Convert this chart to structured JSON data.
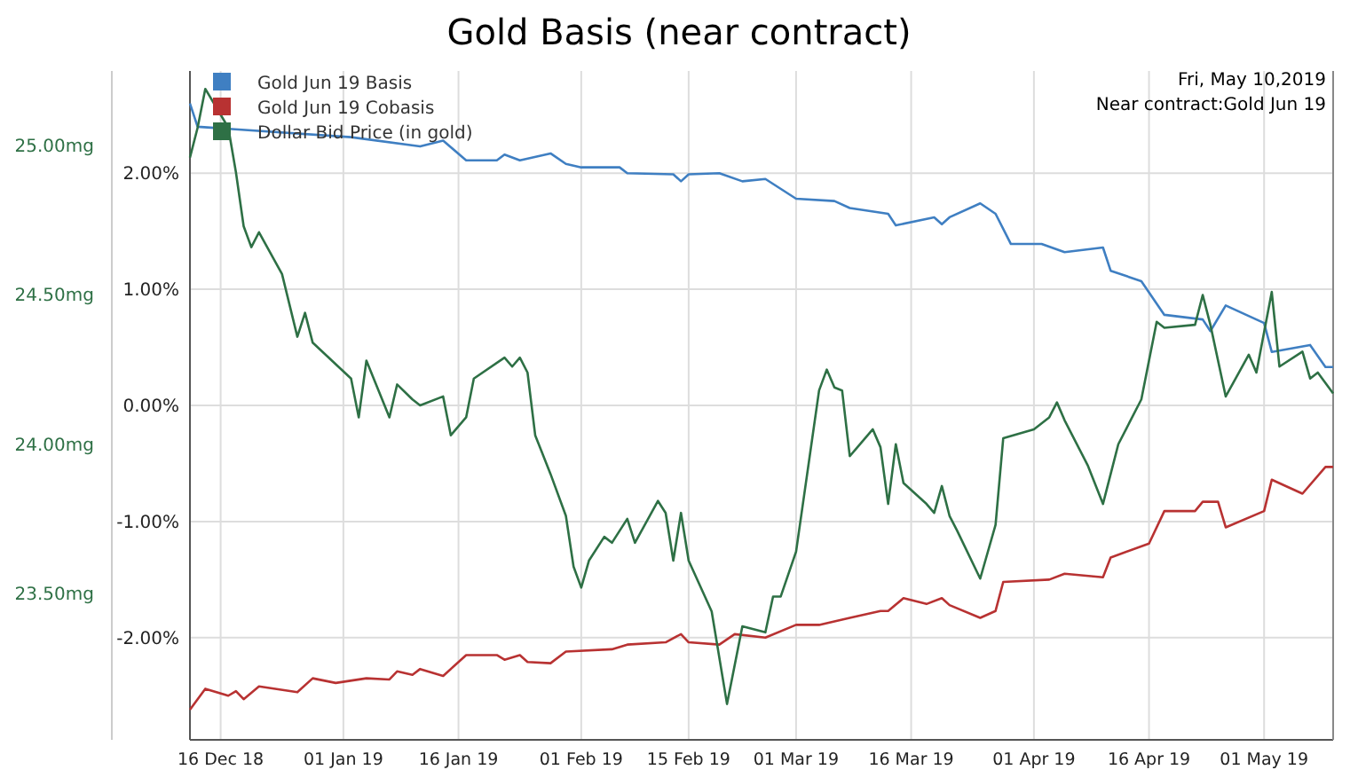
{
  "chart_data": {
    "type": "line",
    "title": "Gold Basis (near contract)",
    "annotations": [
      "Fri, May 10,2019",
      "Near contract:Gold Jun 19"
    ],
    "xlim": [
      "2018-12-12",
      "2019-05-10"
    ],
    "xticks": [
      {
        "value": "2018-12-16",
        "label": "16 Dec 18"
      },
      {
        "value": "2019-01-01",
        "label": "01 Jan 19"
      },
      {
        "value": "2019-01-16",
        "label": "16 Jan 19"
      },
      {
        "value": "2019-02-01",
        "label": "01 Feb 19"
      },
      {
        "value": "2019-02-15",
        "label": "15 Feb 19"
      },
      {
        "value": "2019-03-01",
        "label": "01 Mar 19"
      },
      {
        "value": "2019-03-16",
        "label": "16 Mar 19"
      },
      {
        "value": "2019-04-01",
        "label": "01 Apr 19"
      },
      {
        "value": "2019-04-16",
        "label": "16 Apr 19"
      },
      {
        "value": "2019-05-01",
        "label": "01 May 19"
      }
    ],
    "ylim": [
      -2.88,
      2.88
    ],
    "yticks": [
      {
        "value": -2,
        "label": "-2.00%"
      },
      {
        "value": -1,
        "label": "-1.00%"
      },
      {
        "value": 0,
        "label": "0.00%"
      },
      {
        "value": 1,
        "label": "1.00%"
      },
      {
        "value": 2,
        "label": "2.00%"
      }
    ],
    "y2lim": [
      23.01,
      25.25
    ],
    "y2ticks": [
      {
        "value": 23.5,
        "label": "23.50mg"
      },
      {
        "value": 24,
        "label": "24.00mg"
      },
      {
        "value": 24.5,
        "label": "24.50mg"
      },
      {
        "value": 25,
        "label": "25.00mg"
      }
    ],
    "grid": true,
    "legend": "top left",
    "marker": "none",
    "line_style": "solid",
    "series": [
      {
        "name": "Gold Jun 19 Basis",
        "color": "#3f7fc2",
        "x": [
          "2018-12-12",
          "2018-12-13",
          "2019-01-02",
          "2019-01-11",
          "2019-01-14",
          "2019-01-17",
          "2019-01-21",
          "2019-01-22",
          "2019-01-24",
          "2019-01-28",
          "2019-01-30",
          "2019-02-01",
          "2019-02-06",
          "2019-02-07",
          "2019-02-13",
          "2019-02-14",
          "2019-02-15",
          "2019-02-19",
          "2019-02-22",
          "2019-02-25",
          "2019-03-01",
          "2019-03-06",
          "2019-03-08",
          "2019-03-13",
          "2019-03-14",
          "2019-03-19",
          "2019-03-20",
          "2019-03-21",
          "2019-03-25",
          "2019-03-27",
          "2019-03-29",
          "2019-04-02",
          "2019-04-05",
          "2019-04-10",
          "2019-04-11",
          "2019-04-15",
          "2019-04-18",
          "2019-04-23",
          "2019-04-24",
          "2019-04-26",
          "2019-05-01",
          "2019-05-02",
          "2019-05-07",
          "2019-05-09",
          "2019-05-10"
        ],
        "values": [
          2.6,
          2.4,
          2.31,
          2.23,
          2.28,
          2.11,
          2.11,
          2.16,
          2.11,
          2.17,
          2.08,
          2.05,
          2.05,
          2.0,
          1.99,
          1.93,
          1.99,
          2.0,
          1.93,
          1.95,
          1.78,
          1.76,
          1.7,
          1.65,
          1.55,
          1.62,
          1.56,
          1.62,
          1.74,
          1.65,
          1.39,
          1.39,
          1.32,
          1.36,
          1.16,
          1.07,
          0.78,
          0.74,
          0.64,
          0.86,
          0.71,
          0.46,
          0.52,
          0.33,
          0.33
        ]
      },
      {
        "name": "Gold Jun 19 Cobasis",
        "color": "#b83232",
        "x": [
          "2018-12-12",
          "2018-12-14",
          "2018-12-17",
          "2018-12-18",
          "2018-12-19",
          "2018-12-21",
          "2018-12-26",
          "2018-12-28",
          "2018-12-31",
          "2019-01-04",
          "2019-01-07",
          "2019-01-08",
          "2019-01-10",
          "2019-01-11",
          "2019-01-14",
          "2019-01-17",
          "2019-01-21",
          "2019-01-22",
          "2019-01-24",
          "2019-01-25",
          "2019-01-28",
          "2019-01-30",
          "2019-02-05",
          "2019-02-07",
          "2019-02-12",
          "2019-02-14",
          "2019-02-15",
          "2019-02-19",
          "2019-02-21",
          "2019-02-25",
          "2019-03-01",
          "2019-03-04",
          "2019-03-08",
          "2019-03-12",
          "2019-03-13",
          "2019-03-15",
          "2019-03-18",
          "2019-03-20",
          "2019-03-21",
          "2019-03-25",
          "2019-03-27",
          "2019-03-28",
          "2019-04-03",
          "2019-04-05",
          "2019-04-10",
          "2019-04-11",
          "2019-04-16",
          "2019-04-18",
          "2019-04-22",
          "2019-04-23",
          "2019-04-25",
          "2019-04-26",
          "2019-05-01",
          "2019-05-02",
          "2019-05-06",
          "2019-05-09",
          "2019-05-10"
        ],
        "values": [
          -2.62,
          -2.44,
          -2.5,
          -2.46,
          -2.53,
          -2.42,
          -2.47,
          -2.35,
          -2.39,
          -2.35,
          -2.36,
          -2.29,
          -2.32,
          -2.27,
          -2.33,
          -2.15,
          -2.15,
          -2.19,
          -2.15,
          -2.21,
          -2.22,
          -2.12,
          -2.1,
          -2.06,
          -2.04,
          -1.97,
          -2.04,
          -2.06,
          -1.97,
          -2.0,
          -1.89,
          -1.89,
          -1.83,
          -1.77,
          -1.77,
          -1.66,
          -1.71,
          -1.66,
          -1.72,
          -1.83,
          -1.77,
          -1.52,
          -1.5,
          -1.45,
          -1.48,
          -1.31,
          -1.19,
          -0.91,
          -0.91,
          -0.83,
          -0.83,
          -1.05,
          -0.91,
          -0.64,
          -0.76,
          -0.53,
          -0.53
        ]
      },
      {
        "name": "Dollar Bid Price (in gold)",
        "color": "#2e7045",
        "axis": "y2",
        "x": [
          "2018-12-12",
          "2018-12-13",
          "2018-12-14",
          "2018-12-17",
          "2018-12-18",
          "2018-12-19",
          "2018-12-20",
          "2018-12-21",
          "2018-12-24",
          "2018-12-26",
          "2018-12-27",
          "2018-12-28",
          "2019-01-02",
          "2019-01-03",
          "2019-01-04",
          "2019-01-07",
          "2019-01-08",
          "2019-01-10",
          "2019-01-11",
          "2019-01-14",
          "2019-01-15",
          "2019-01-17",
          "2019-01-18",
          "2019-01-22",
          "2019-01-23",
          "2019-01-24",
          "2019-01-25",
          "2019-01-26",
          "2019-01-28",
          "2019-01-30",
          "2019-01-31",
          "2019-02-01",
          "2019-02-02",
          "2019-02-04",
          "2019-02-05",
          "2019-02-07",
          "2019-02-08",
          "2019-02-11",
          "2019-02-12",
          "2019-02-13",
          "2019-02-14",
          "2019-02-15",
          "2019-02-18",
          "2019-02-20",
          "2019-02-22",
          "2019-02-25",
          "2019-02-26",
          "2019-02-27",
          "2019-03-01",
          "2019-03-04",
          "2019-03-05",
          "2019-03-06",
          "2019-03-07",
          "2019-03-08",
          "2019-03-11",
          "2019-03-12",
          "2019-03-13",
          "2019-03-14",
          "2019-03-15",
          "2019-03-18",
          "2019-03-19",
          "2019-03-20",
          "2019-03-21",
          "2019-03-22",
          "2019-03-25",
          "2019-03-27",
          "2019-03-28",
          "2019-04-01",
          "2019-04-03",
          "2019-04-04",
          "2019-04-05",
          "2019-04-08",
          "2019-04-10",
          "2019-04-12",
          "2019-04-15",
          "2019-04-17",
          "2019-04-18",
          "2019-04-22",
          "2019-04-23",
          "2019-04-24",
          "2019-04-26",
          "2019-04-29",
          "2019-04-30",
          "2019-05-02",
          "2019-05-03",
          "2019-05-06",
          "2019-05-07",
          "2019-05-08",
          "2019-05-10"
        ],
        "values": [
          24.96,
          25.06,
          25.19,
          25.06,
          24.91,
          24.73,
          24.66,
          24.71,
          24.57,
          24.36,
          24.44,
          24.34,
          24.22,
          24.09,
          24.28,
          24.09,
          24.2,
          24.15,
          24.13,
          24.16,
          24.03,
          24.09,
          24.22,
          24.29,
          24.26,
          24.29,
          24.24,
          24.03,
          23.9,
          23.76,
          23.59,
          23.52,
          23.61,
          23.69,
          23.67,
          23.75,
          23.67,
          23.81,
          23.77,
          23.61,
          23.77,
          23.61,
          23.44,
          23.13,
          23.39,
          23.37,
          23.49,
          23.49,
          23.64,
          24.18,
          24.25,
          24.19,
          24.18,
          23.96,
          24.05,
          23.99,
          23.8,
          24.0,
          23.87,
          23.8,
          23.77,
          23.86,
          23.76,
          23.71,
          23.55,
          23.73,
          24.02,
          24.05,
          24.09,
          24.14,
          24.08,
          23.93,
          23.8,
          24.0,
          24.15,
          24.41,
          24.39,
          24.4,
          24.5,
          24.4,
          24.16,
          24.3,
          24.24,
          24.51,
          24.26,
          24.31,
          24.22,
          24.24,
          24.17
        ]
      }
    ]
  }
}
